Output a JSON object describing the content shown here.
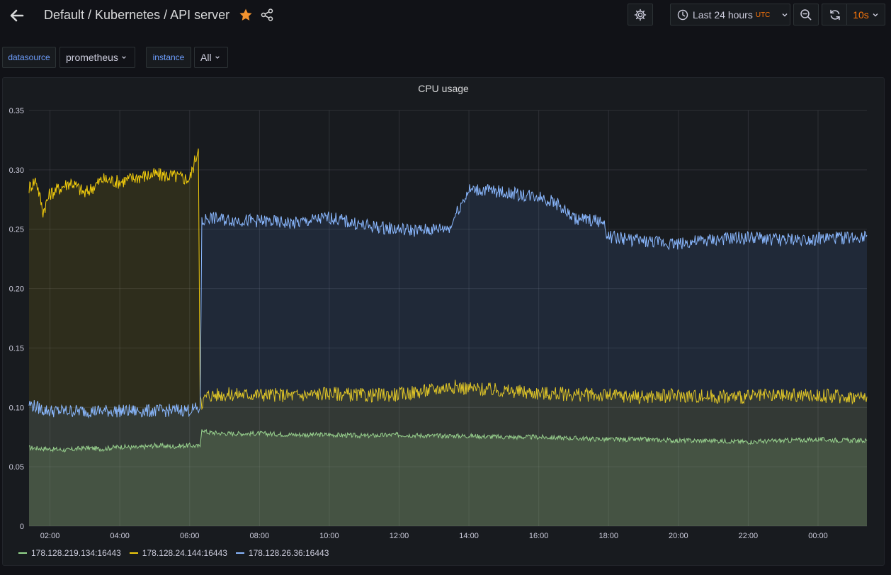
{
  "header": {
    "title": "Default / Kubernetes / API server",
    "time_range": "Last 24 hours",
    "timezone": "UTC",
    "refresh_interval": "10s"
  },
  "variables": [
    {
      "label": "datasource",
      "value": "prometheus"
    },
    {
      "label": "instance",
      "value": "All"
    }
  ],
  "colors": {
    "background": "#111217",
    "panel": "#181b1f",
    "accent_orange": "#ff780a",
    "star": "#f2922e"
  },
  "chart_data": {
    "type": "area",
    "title": "CPU usage",
    "ylim": [
      0,
      0.35
    ],
    "yticks": [
      "0",
      "0.05",
      "0.10",
      "0.15",
      "0.20",
      "0.25",
      "0.30",
      "0.35"
    ],
    "x_range_hours": [
      1.4,
      25.4
    ],
    "xticks": [
      {
        "h": 2,
        "label": "02:00"
      },
      {
        "h": 4,
        "label": "04:00"
      },
      {
        "h": 6,
        "label": "06:00"
      },
      {
        "h": 8,
        "label": "08:00"
      },
      {
        "h": 10,
        "label": "10:00"
      },
      {
        "h": 12,
        "label": "12:00"
      },
      {
        "h": 14,
        "label": "14:00"
      },
      {
        "h": 16,
        "label": "16:00"
      },
      {
        "h": 18,
        "label": "18:00"
      },
      {
        "h": 20,
        "label": "20:00"
      },
      {
        "h": 22,
        "label": "22:00"
      },
      {
        "h": 24,
        "label": "00:00"
      }
    ],
    "series": [
      {
        "name": "178.128.219.134:16443",
        "color": "#96d98d",
        "fill": "rgba(126,178,109,0.22)",
        "x": [
          1.4,
          2.0,
          2.5,
          3.0,
          3.5,
          4.0,
          4.5,
          5.0,
          5.5,
          6.0,
          6.3,
          6.35,
          6.5,
          7.0,
          8.0,
          9.0,
          10.0,
          11.0,
          12.0,
          13.0,
          14.0,
          15.0,
          16.0,
          17.0,
          18.0,
          19.0,
          20.0,
          21.0,
          22.0,
          23.0,
          24.0,
          25.0,
          25.4
        ],
        "values": [
          0.066,
          0.065,
          0.064,
          0.066,
          0.065,
          0.067,
          0.066,
          0.068,
          0.067,
          0.068,
          0.067,
          0.082,
          0.079,
          0.078,
          0.078,
          0.077,
          0.077,
          0.076,
          0.077,
          0.076,
          0.076,
          0.075,
          0.075,
          0.074,
          0.073,
          0.073,
          0.072,
          0.072,
          0.071,
          0.072,
          0.073,
          0.072,
          0.072
        ]
      },
      {
        "name": "178.128.24.144:16443",
        "color": "#f2cc0c",
        "fill": "rgba(242,204,12,0.10)",
        "x": [
          1.4,
          1.6,
          1.8,
          2.0,
          2.3,
          2.6,
          3.0,
          3.5,
          4.0,
          4.5,
          5.0,
          5.5,
          6.0,
          6.25,
          6.3,
          6.35,
          6.5,
          7.0,
          8.0,
          9.0,
          10.0,
          11.0,
          12.0,
          12.5,
          13.0,
          13.5,
          14.0,
          14.5,
          15.0,
          16.0,
          17.0,
          18.0,
          19.0,
          20.0,
          21.0,
          22.0,
          23.0,
          24.0,
          25.0,
          25.4
        ],
        "values": [
          0.285,
          0.292,
          0.265,
          0.28,
          0.285,
          0.29,
          0.28,
          0.292,
          0.29,
          0.294,
          0.296,
          0.295,
          0.292,
          0.318,
          0.11,
          0.104,
          0.11,
          0.111,
          0.111,
          0.11,
          0.112,
          0.11,
          0.111,
          0.113,
          0.115,
          0.118,
          0.116,
          0.115,
          0.114,
          0.112,
          0.111,
          0.11,
          0.109,
          0.11,
          0.109,
          0.109,
          0.11,
          0.11,
          0.109,
          0.109
        ]
      },
      {
        "name": "178.128.26.36:16443",
        "color": "#8ab8ff",
        "fill": "rgba(87,148,242,0.12)",
        "x": [
          1.4,
          1.8,
          2.0,
          3.0,
          4.0,
          5.0,
          6.0,
          6.3,
          6.35,
          6.5,
          7.0,
          8.0,
          9.0,
          10.0,
          11.0,
          12.0,
          12.5,
          13.0,
          13.5,
          13.6,
          14.0,
          14.5,
          15.0,
          15.5,
          16.0,
          16.5,
          17.0,
          17.8,
          18.0,
          19.0,
          20.0,
          21.0,
          22.0,
          23.0,
          24.0,
          25.0,
          25.4
        ],
        "values": [
          0.103,
          0.098,
          0.097,
          0.097,
          0.097,
          0.097,
          0.098,
          0.099,
          0.255,
          0.26,
          0.258,
          0.257,
          0.255,
          0.26,
          0.253,
          0.25,
          0.249,
          0.25,
          0.252,
          0.262,
          0.283,
          0.283,
          0.281,
          0.279,
          0.278,
          0.272,
          0.259,
          0.257,
          0.244,
          0.24,
          0.238,
          0.241,
          0.243,
          0.241,
          0.242,
          0.243,
          0.245
        ]
      }
    ]
  }
}
